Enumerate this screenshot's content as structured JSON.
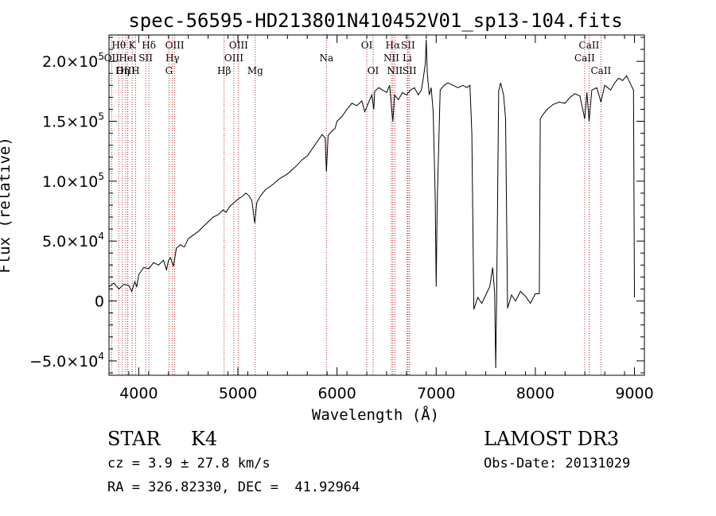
{
  "chart_data": {
    "type": "line",
    "title": "spec-56595-HD213801N410452V01_sp13-104.fits",
    "xlabel": "Wavelength (Å)",
    "ylabel": "Flux (relative)",
    "xlim": [
      3700,
      9100
    ],
    "ylim": [
      -62000,
      222000
    ],
    "x_ticks": [
      4000,
      5000,
      6000,
      7000,
      8000,
      9000
    ],
    "x_tick_labels": [
      "4000",
      "5000",
      "6000",
      "7000",
      "8000",
      "9000"
    ],
    "y_ticks": [
      {
        "value": -50000,
        "mant": "−5.0×10",
        "exp": "4"
      },
      {
        "value": 0,
        "mant": "0",
        "exp": ""
      },
      {
        "value": 50000,
        "mant": "5.0×10",
        "exp": "4"
      },
      {
        "value": 100000,
        "mant": "1.0×10",
        "exp": "5"
      },
      {
        "value": 150000,
        "mant": "1.5×10",
        "exp": "5"
      },
      {
        "value": 200000,
        "mant": "2.0×10",
        "exp": "5"
      }
    ],
    "grid": false,
    "line_color": "#000000",
    "line_marker_color": "#b22222",
    "spectral_lines": [
      {
        "label": "Hθ",
        "x": 3798,
        "row": 0
      },
      {
        "label": "OII",
        "x": 3727,
        "row": 1
      },
      {
        "label": "OIII",
        "x": 3869,
        "row": 2
      },
      {
        "label": "K",
        "x": 3934,
        "row": 0
      },
      {
        "label": "HeI",
        "x": 3889,
        "row": 1
      },
      {
        "label": "Hη",
        "x": 3835,
        "row": 2
      },
      {
        "label": "H",
        "x": 3968,
        "row": 2
      },
      {
        "label": "SII",
        "x": 4070,
        "row": 1
      },
      {
        "label": "Hδ",
        "x": 4102,
        "row": 0
      },
      {
        "label": "OIII",
        "x": 4363,
        "row": 0
      },
      {
        "label": "Hγ",
        "x": 4340,
        "row": 1
      },
      {
        "label": "G",
        "x": 4305,
        "row": 2
      },
      {
        "label": "Hβ",
        "x": 4861,
        "row": 2
      },
      {
        "label": "OIII",
        "x": 5007,
        "row": 0
      },
      {
        "label": "OIII",
        "x": 4959,
        "row": 1
      },
      {
        "label": "Mg",
        "x": 5175,
        "row": 2
      },
      {
        "label": "Na",
        "x": 5893,
        "row": 1
      },
      {
        "label": "OI",
        "x": 6300,
        "row": 0
      },
      {
        "label": "OI",
        "x": 6364,
        "row": 2
      },
      {
        "label": "Hα",
        "x": 6563,
        "row": 0
      },
      {
        "label": "SII",
        "x": 6716,
        "row": 0
      },
      {
        "label": "NII",
        "x": 6548,
        "row": 1
      },
      {
        "label": "Li",
        "x": 6708,
        "row": 1
      },
      {
        "label": "NII",
        "x": 6583,
        "row": 2
      },
      {
        "label": "SII",
        "x": 6731,
        "row": 2
      },
      {
        "label": "CaII",
        "x": 8542,
        "row": 0
      },
      {
        "label": "CaII",
        "x": 8498,
        "row": 1
      },
      {
        "label": "CaII",
        "x": 8662,
        "row": 2
      }
    ],
    "spectrum_points": [
      [
        3700,
        12000
      ],
      [
        3750,
        15000
      ],
      [
        3800,
        10000
      ],
      [
        3850,
        14000
      ],
      [
        3900,
        13000
      ],
      [
        3930,
        8000
      ],
      [
        3960,
        16000
      ],
      [
        3980,
        12000
      ],
      [
        4000,
        22000
      ],
      [
        4050,
        28000
      ],
      [
        4100,
        27000
      ],
      [
        4150,
        32000
      ],
      [
        4200,
        30000
      ],
      [
        4250,
        34000
      ],
      [
        4280,
        26000
      ],
      [
        4300,
        34000
      ],
      [
        4320,
        36000
      ],
      [
        4350,
        29000
      ],
      [
        4380,
        44000
      ],
      [
        4420,
        47000
      ],
      [
        4460,
        45000
      ],
      [
        4500,
        52000
      ],
      [
        4550,
        55000
      ],
      [
        4600,
        58000
      ],
      [
        4650,
        62000
      ],
      [
        4700,
        66000
      ],
      [
        4750,
        70000
      ],
      [
        4800,
        72000
      ],
      [
        4850,
        76000
      ],
      [
        4880,
        74000
      ],
      [
        4920,
        79000
      ],
      [
        4960,
        82000
      ],
      [
        5000,
        85000
      ],
      [
        5040,
        87000
      ],
      [
        5080,
        90000
      ],
      [
        5110,
        88000
      ],
      [
        5140,
        84000
      ],
      [
        5170,
        65000
      ],
      [
        5190,
        82000
      ],
      [
        5230,
        88000
      ],
      [
        5280,
        93000
      ],
      [
        5350,
        97000
      ],
      [
        5420,
        102000
      ],
      [
        5500,
        106000
      ],
      [
        5580,
        112000
      ],
      [
        5650,
        118000
      ],
      [
        5700,
        121000
      ],
      [
        5750,
        127000
      ],
      [
        5800,
        133000
      ],
      [
        5850,
        139000
      ],
      [
        5880,
        136000
      ],
      [
        5893,
        108000
      ],
      [
        5910,
        138000
      ],
      [
        5950,
        142000
      ],
      [
        5980,
        144000
      ],
      [
        6000,
        150000
      ],
      [
        6050,
        154000
      ],
      [
        6100,
        160000
      ],
      [
        6150,
        165000
      ],
      [
        6200,
        163000
      ],
      [
        6250,
        167000
      ],
      [
        6280,
        158000
      ],
      [
        6300,
        162000
      ],
      [
        6330,
        168000
      ],
      [
        6350,
        172000
      ],
      [
        6370,
        160000
      ],
      [
        6380,
        175000
      ],
      [
        6420,
        178000
      ],
      [
        6460,
        176000
      ],
      [
        6500,
        174000
      ],
      [
        6530,
        180000
      ],
      [
        6563,
        150000
      ],
      [
        6580,
        172000
      ],
      [
        6620,
        168000
      ],
      [
        6660,
        174000
      ],
      [
        6700,
        172000
      ],
      [
        6740,
        176000
      ],
      [
        6780,
        178000
      ],
      [
        6820,
        172000
      ],
      [
        6850,
        176000
      ],
      [
        6870,
        186000
      ],
      [
        6890,
        198000
      ],
      [
        6900,
        218000
      ],
      [
        6910,
        190000
      ],
      [
        6930,
        172000
      ],
      [
        6950,
        178000
      ],
      [
        6970,
        158000
      ],
      [
        6990,
        88000
      ],
      [
        7000,
        12000
      ],
      [
        7010,
        80000
      ],
      [
        7040,
        176000
      ],
      [
        7080,
        180000
      ],
      [
        7120,
        182000
      ],
      [
        7170,
        180000
      ],
      [
        7220,
        178000
      ],
      [
        7270,
        180000
      ],
      [
        7310,
        178000
      ],
      [
        7340,
        180000
      ],
      [
        7360,
        140000
      ],
      [
        7380,
        -7000
      ],
      [
        7420,
        3000
      ],
      [
        7460,
        -2000
      ],
      [
        7500,
        5000
      ],
      [
        7540,
        12000
      ],
      [
        7570,
        28000
      ],
      [
        7590,
        6000
      ],
      [
        7600,
        -56000
      ],
      [
        7610,
        4000
      ],
      [
        7630,
        175000
      ],
      [
        7650,
        182000
      ],
      [
        7680,
        172000
      ],
      [
        7700,
        152000
      ],
      [
        7720,
        -6000
      ],
      [
        7760,
        5000
      ],
      [
        7800,
        0
      ],
      [
        7850,
        8000
      ],
      [
        7900,
        4000
      ],
      [
        7950,
        -2000
      ],
      [
        8000,
        6000
      ],
      [
        8040,
        6000
      ],
      [
        8050,
        152000
      ],
      [
        8080,
        156000
      ],
      [
        8120,
        160000
      ],
      [
        8180,
        164000
      ],
      [
        8240,
        166000
      ],
      [
        8300,
        165000
      ],
      [
        8350,
        170000
      ],
      [
        8400,
        173000
      ],
      [
        8450,
        171000
      ],
      [
        8498,
        152000
      ],
      [
        8520,
        174000
      ],
      [
        8542,
        150000
      ],
      [
        8570,
        176000
      ],
      [
        8620,
        178000
      ],
      [
        8662,
        166000
      ],
      [
        8700,
        180000
      ],
      [
        8760,
        176000
      ],
      [
        8800,
        182000
      ],
      [
        8840,
        186000
      ],
      [
        8880,
        184000
      ],
      [
        8920,
        188000
      ],
      [
        8960,
        181000
      ],
      [
        8990,
        176000
      ],
      [
        9000,
        3000
      ]
    ]
  },
  "footer": {
    "object_class": "STAR",
    "subclass": "K4",
    "survey": "LAMOST DR3",
    "redshift": "cz = 3.9 ± 27.8 km/s",
    "obs_date": "Obs-Date: 20131029",
    "coords": "RA = 326.82330, DEC =  41.92964"
  }
}
